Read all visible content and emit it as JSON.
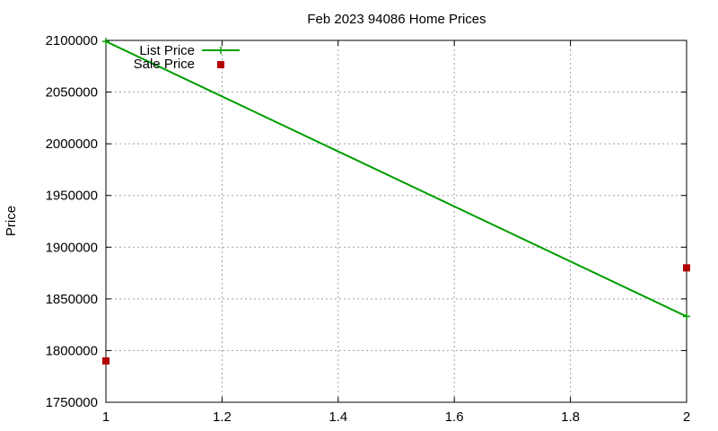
{
  "chart_data": {
    "type": "line",
    "title": "Feb 2023 94086 Home Prices",
    "xlabel": "",
    "ylabel": "Price",
    "xlim": [
      1,
      2
    ],
    "ylim": [
      1750000,
      2100000
    ],
    "x_ticks": [
      1,
      1.2,
      1.4,
      1.6,
      1.8,
      2
    ],
    "x_tick_labels": [
      "1",
      "1.2",
      "1.4",
      "1.6",
      "1.8",
      "2"
    ],
    "y_ticks": [
      1750000,
      1800000,
      1850000,
      1900000,
      1950000,
      2000000,
      2050000,
      2100000
    ],
    "y_tick_labels": [
      "1750000",
      "1800000",
      "1850000",
      "1900000",
      "1950000",
      "2000000",
      "2050000",
      "2100000"
    ],
    "grid": true,
    "legend_position": "top-left",
    "series": [
      {
        "name": "List Price",
        "style": "linespoints",
        "marker": "plus",
        "color": "#009e00",
        "x": [
          1,
          2
        ],
        "y": [
          2099000,
          1833000
        ]
      },
      {
        "name": "Sale Price",
        "style": "points",
        "marker": "square",
        "color": "#b30000",
        "x": [
          1,
          2
        ],
        "y": [
          1790000,
          1880000
        ]
      }
    ]
  }
}
